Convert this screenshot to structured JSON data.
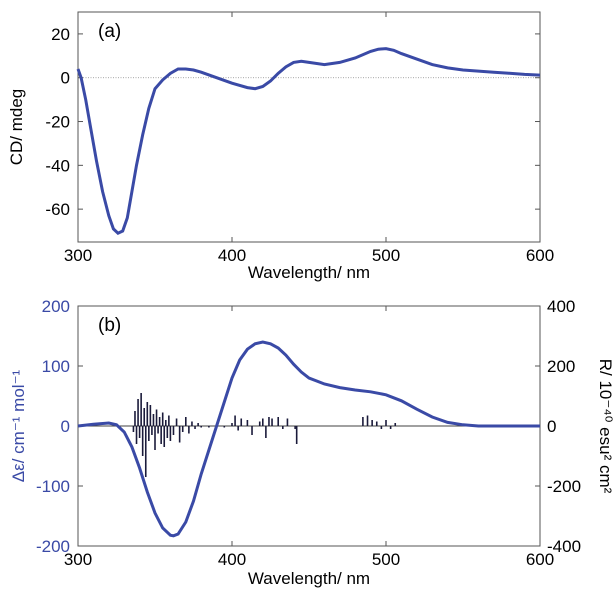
{
  "chart_data": [
    {
      "type": "line",
      "panel_label": "(a)",
      "xlabel": "Wavelength/ nm",
      "ylabel": "CD/ mdeg",
      "xlim": [
        300,
        600
      ],
      "ylim": [
        -75,
        30
      ],
      "xticks": [
        300,
        400,
        500,
        600
      ],
      "yticks": [
        20,
        0,
        -20,
        -40,
        -60
      ],
      "zero_line": true,
      "line_color": "#3a4aa6",
      "series": [
        {
          "x": [
            300,
            302,
            305,
            308,
            312,
            316,
            320,
            323,
            326,
            329,
            332,
            335,
            338,
            342,
            346,
            350,
            355,
            360,
            365,
            370,
            375,
            380,
            390,
            400,
            410,
            415,
            420,
            425,
            430,
            435,
            440,
            445,
            450,
            460,
            470,
            480,
            490,
            495,
            500,
            505,
            510,
            520,
            530,
            540,
            550,
            560,
            570,
            580,
            590,
            600
          ],
          "y": [
            4,
            0,
            -10,
            -22,
            -38,
            -52,
            -63,
            -69,
            -71,
            -70,
            -64,
            -52,
            -40,
            -26,
            -14,
            -5,
            -1,
            2,
            4,
            4,
            3.5,
            2.5,
            0,
            -2.5,
            -4.5,
            -5,
            -4,
            -1.5,
            2,
            5,
            7,
            7.5,
            7,
            6,
            7,
            9,
            12,
            13,
            13.3,
            12.5,
            11,
            8.5,
            6,
            4.5,
            3.5,
            3,
            2.5,
            2,
            1.5,
            1.2
          ]
        }
      ]
    },
    {
      "type": "line",
      "panel_label": "(b)",
      "xlabel": "Wavelength/ nm",
      "ylabel": "Δε/ cm⁻¹ mol⁻¹",
      "y2label": "R/ 10⁻⁴⁰ esu² cm²",
      "xlim": [
        300,
        600
      ],
      "ylim": [
        -200,
        200
      ],
      "y2lim": [
        -400,
        400
      ],
      "xticks": [
        300,
        400,
        500,
        600
      ],
      "yticks": [
        200,
        100,
        0,
        -100,
        -200
      ],
      "y2ticks": [
        400,
        200,
        0,
        -200,
        -400
      ],
      "line_color": "#3a4aa6",
      "series": [
        {
          "x": [
            300,
            310,
            320,
            325,
            330,
            335,
            340,
            345,
            350,
            355,
            360,
            362,
            365,
            370,
            375,
            380,
            385,
            390,
            395,
            400,
            405,
            410,
            415,
            420,
            425,
            430,
            435,
            440,
            445,
            450,
            460,
            470,
            480,
            490,
            500,
            510,
            520,
            530,
            540,
            550,
            560,
            570,
            580,
            590,
            600
          ],
          "y": [
            0,
            3,
            5,
            2,
            -10,
            -35,
            -70,
            -110,
            -145,
            -170,
            -182,
            -183,
            -180,
            -160,
            -125,
            -80,
            -40,
            0,
            40,
            80,
            110,
            128,
            137,
            140,
            137,
            130,
            118,
            103,
            90,
            80,
            70,
            64,
            60,
            57,
            52,
            42,
            28,
            15,
            6,
            2,
            0,
            0,
            0,
            0,
            0
          ]
        }
      ],
      "sticks": {
        "color": "#1a1a3a",
        "x": [
          336,
          337,
          338,
          339,
          340,
          341,
          342,
          343,
          344,
          345,
          346,
          347,
          348,
          349,
          350,
          351,
          352,
          353,
          354,
          355,
          356,
          357,
          358,
          359,
          360,
          362,
          364,
          366,
          368,
          370,
          372,
          374,
          376,
          378,
          380,
          385,
          390,
          395,
          400,
          402,
          404,
          406,
          410,
          413,
          418,
          420,
          422,
          424,
          426,
          430,
          433,
          436,
          441,
          442,
          485,
          488,
          491,
          494,
          497,
          500,
          503,
          506
        ],
        "y": [
          -20,
          50,
          -60,
          90,
          -40,
          110,
          -100,
          60,
          -170,
          80,
          -50,
          70,
          -30,
          40,
          -80,
          55,
          -25,
          30,
          -60,
          45,
          -70,
          20,
          -40,
          35,
          -50,
          -30,
          25,
          -55,
          -20,
          30,
          -25,
          15,
          -10,
          10,
          -5,
          -5,
          5,
          -5,
          10,
          35,
          -15,
          25,
          20,
          -30,
          15,
          25,
          -40,
          30,
          25,
          30,
          -10,
          25,
          -10,
          -60,
          30,
          35,
          20,
          15,
          -10,
          20,
          -10,
          10
        ]
      }
    }
  ]
}
